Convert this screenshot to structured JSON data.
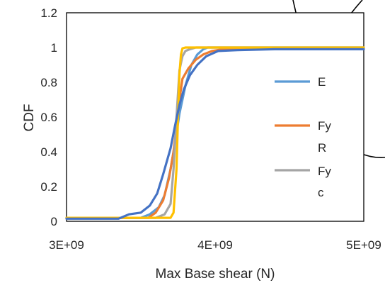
{
  "chart_data": {
    "type": "line",
    "xlabel": "Max Base shear (N)",
    "ylabel": "CDF",
    "xlim": [
      3000000000,
      5000000000
    ],
    "ylim": [
      0,
      1.2
    ],
    "x_ticks": [
      "3E+09",
      "4E+09",
      "5E+09"
    ],
    "y_ticks": [
      "0",
      "0.2",
      "0.4",
      "0.6",
      "0.8",
      "1",
      "1.2"
    ],
    "grid": false,
    "legend_position": "right",
    "series": [
      {
        "name": "E",
        "legend_lines": [
          "E"
        ],
        "color": "#5b9bd5",
        "x": [
          3000000000,
          3500000000,
          3560000000,
          3620000000,
          3660000000,
          3700000000,
          3730000000,
          3760000000,
          3800000000,
          3840000000,
          3880000000,
          3920000000,
          3950000000,
          4000000000,
          5000000000
        ],
        "y": [
          0.02,
          0.02,
          0.04,
          0.08,
          0.15,
          0.3,
          0.45,
          0.62,
          0.78,
          0.9,
          0.96,
          0.99,
          1.0,
          1.0,
          1.0
        ]
      },
      {
        "name": "Fy R",
        "legend_lines": [
          "Fy",
          "R"
        ],
        "color": "#ed7d31",
        "x": [
          3000000000,
          3550000000,
          3600000000,
          3650000000,
          3690000000,
          3720000000,
          3740000000,
          3760000000,
          3780000000,
          3820000000,
          3870000000,
          3920000000,
          3980000000,
          4050000000,
          4300000000,
          5000000000
        ],
        "y": [
          0.02,
          0.02,
          0.05,
          0.12,
          0.25,
          0.4,
          0.55,
          0.7,
          0.82,
          0.88,
          0.93,
          0.96,
          0.98,
          0.99,
          0.99,
          0.99
        ]
      },
      {
        "name": "Fy c",
        "legend_lines": [
          "Fy",
          "c"
        ],
        "color": "#a5a5a5",
        "x": [
          3000000000,
          3600000000,
          3660000000,
          3700000000,
          3720000000,
          3740000000,
          3760000000,
          3780000000,
          3800000000,
          3830000000,
          3870000000,
          3930000000,
          4000000000,
          5000000000
        ],
        "y": [
          0.02,
          0.02,
          0.04,
          0.1,
          0.3,
          0.6,
          0.87,
          0.95,
          0.98,
          0.99,
          1.0,
          1.0,
          1.0,
          1.0
        ]
      },
      {
        "name": "",
        "legend_lines": [],
        "color": "#ffc000",
        "x": [
          3000000000,
          3700000000,
          3720000000,
          3740000000,
          3750000000,
          3760000000,
          3770000000,
          3780000000,
          3800000000,
          5000000000
        ],
        "y": [
          0.02,
          0.02,
          0.05,
          0.3,
          0.6,
          0.85,
          0.96,
          0.995,
          1.0,
          1.0
        ]
      },
      {
        "name": "",
        "legend_lines": [],
        "color": "#4472c4",
        "x": [
          3000000000,
          3350000000,
          3420000000,
          3500000000,
          3560000000,
          3610000000,
          3650000000,
          3700000000,
          3730000000,
          3760000000,
          3790000000,
          3830000000,
          3880000000,
          3940000000,
          4020000000,
          4150000000,
          4400000000,
          5000000000
        ],
        "y": [
          0.015,
          0.015,
          0.04,
          0.05,
          0.09,
          0.16,
          0.27,
          0.42,
          0.55,
          0.67,
          0.76,
          0.84,
          0.9,
          0.95,
          0.98,
          0.985,
          0.99,
          0.99
        ]
      }
    ]
  }
}
